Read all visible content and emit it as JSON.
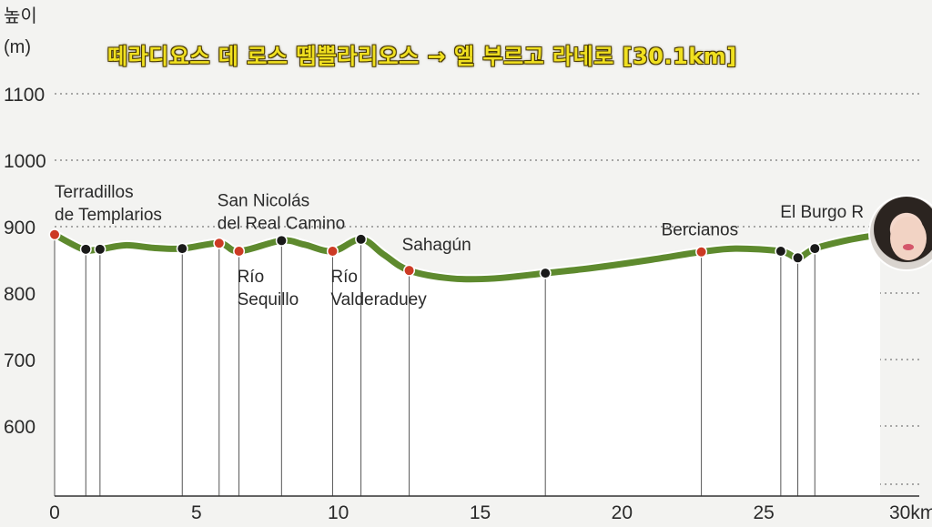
{
  "banner": {
    "title": "떼라디요스 데 로스 뗌쁠라리오스 → 엘 부르고 라네로 [30.1km]"
  },
  "colors": {
    "route": "#5e8a2e",
    "stop_black": "#1a1a1a",
    "stop_red": "#cc3a24",
    "text": "#2a2a2a",
    "grid": "#7a7a7a",
    "fill": "#ffffff"
  },
  "chart_data": {
    "type": "area",
    "title": "",
    "xlabel": "",
    "ylabel": "높이 (m)",
    "ylabel_lines": [
      "높이",
      "(m)"
    ],
    "xlim": [
      0,
      30
    ],
    "ylim": [
      520,
      1120
    ],
    "x_ticks": [
      "0",
      "5",
      "10",
      "15",
      "20",
      "25",
      "30km"
    ],
    "x_tick_values": [
      0,
      5,
      10,
      15,
      20,
      25,
      30
    ],
    "y_ticks": [
      "600",
      "700",
      "800",
      "900",
      "1000",
      "1100"
    ],
    "y_tick_values": [
      600,
      700,
      800,
      900,
      1000,
      1100
    ],
    "grid": true,
    "series": [
      {
        "x": [
          0,
          1.0,
          1.6,
          2.5,
          3.5,
          4.5,
          5.8,
          6.5,
          8.0,
          8.8,
          9.8,
          10.8,
          11.6,
          12.5,
          14.0,
          15.5,
          17.3,
          19.0,
          21.0,
          22.8,
          24.0,
          25.6,
          26.2,
          26.8,
          28.0,
          29.1
        ],
        "y": [
          888,
          866,
          866,
          872,
          868,
          867,
          875,
          863,
          879,
          873,
          863,
          881,
          858,
          834,
          822,
          822,
          830,
          838,
          850,
          862,
          867,
          863,
          853,
          867,
          880,
          888
        ]
      }
    ],
    "points": [
      {
        "x": 0,
        "y": 888,
        "kind": "red"
      },
      {
        "x": 1.1,
        "y": 866,
        "kind": "black"
      },
      {
        "x": 1.6,
        "y": 866,
        "kind": "black"
      },
      {
        "x": 4.5,
        "y": 867,
        "kind": "black"
      },
      {
        "x": 5.8,
        "y": 875,
        "kind": "red"
      },
      {
        "x": 6.5,
        "y": 863,
        "kind": "red"
      },
      {
        "x": 8.0,
        "y": 879,
        "kind": "black"
      },
      {
        "x": 9.8,
        "y": 863,
        "kind": "red"
      },
      {
        "x": 10.8,
        "y": 881,
        "kind": "black"
      },
      {
        "x": 12.5,
        "y": 834,
        "kind": "red"
      },
      {
        "x": 17.3,
        "y": 830,
        "kind": "black"
      },
      {
        "x": 22.8,
        "y": 862,
        "kind": "red"
      },
      {
        "x": 25.6,
        "y": 863,
        "kind": "black"
      },
      {
        "x": 26.2,
        "y": 853,
        "kind": "black"
      },
      {
        "x": 26.8,
        "y": 867,
        "kind": "black"
      }
    ],
    "annotations": [
      {
        "lines": [
          "Terradillos",
          "de Templarios"
        ],
        "x": 0,
        "y": 888,
        "place": "above"
      },
      {
        "lines": [
          "San Nicolás",
          "del Real Camino"
        ],
        "x": 5.8,
        "y": 875,
        "place": "above"
      },
      {
        "lines": [
          "Río",
          "Sequillo"
        ],
        "x": 6.5,
        "y": 863,
        "place": "below"
      },
      {
        "lines": [
          "Río",
          "Valderaduey"
        ],
        "x": 9.8,
        "y": 863,
        "place": "below"
      },
      {
        "lines": [
          "Sahagún"
        ],
        "x": 12.5,
        "y": 834,
        "place": "above"
      },
      {
        "lines": [
          "Bercianos"
        ],
        "x": 22.8,
        "y": 862,
        "place": "above"
      },
      {
        "lines": [
          "El Burgo R"
        ],
        "x": 26.8,
        "y": 867,
        "place": "above"
      }
    ]
  }
}
